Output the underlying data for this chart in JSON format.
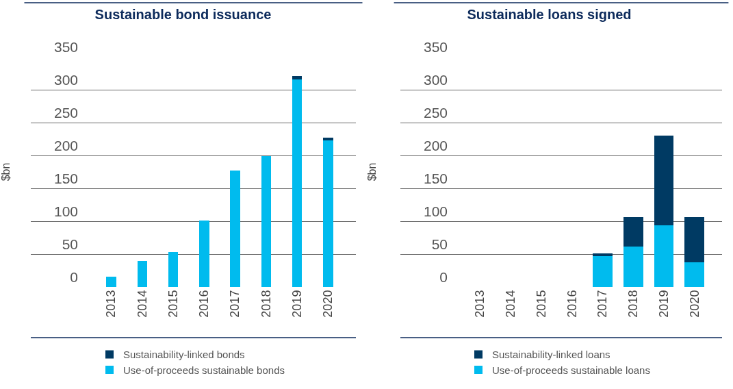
{
  "chart_data": [
    {
      "type": "bar",
      "title": "Sustainable bond issuance",
      "ylabel": "$bn",
      "categories": [
        "2013",
        "2014",
        "2015",
        "2016",
        "2017",
        "2018",
        "2019",
        "2020"
      ],
      "stacked": true,
      "ylim": [
        0,
        350
      ],
      "yticks": [
        0,
        50,
        100,
        150,
        200,
        250,
        300,
        350
      ],
      "grid": "y",
      "legend": "bottom",
      "series": [
        {
          "name": "Use-of-proceeds sustainable bonds",
          "color": "#00bbee",
          "values": [
            16,
            40,
            53,
            101,
            177,
            199,
            316,
            223
          ]
        },
        {
          "name": "Sustainability-linked bonds",
          "color": "#003a63",
          "values": [
            null,
            null,
            null,
            null,
            null,
            null,
            5,
            4
          ]
        }
      ]
    },
    {
      "type": "bar",
      "title": "Sustainable loans signed",
      "ylabel": "$bn",
      "categories": [
        "2013",
        "2014",
        "2015",
        "2016",
        "2017",
        "2018",
        "2019",
        "2020"
      ],
      "stacked": true,
      "ylim": [
        0,
        350
      ],
      "yticks": [
        0,
        50,
        100,
        150,
        200,
        250,
        300,
        350
      ],
      "grid": "y",
      "legend": "bottom",
      "series": [
        {
          "name": "Use-of-proceeds sustainable loans",
          "color": "#00bbee",
          "values": [
            null,
            null,
            null,
            null,
            47,
            61,
            94,
            38
          ]
        },
        {
          "name": "Sustainability-linked loans",
          "color": "#003a63",
          "values": [
            null,
            null,
            null,
            null,
            4,
            45,
            136,
            68
          ]
        }
      ]
    }
  ]
}
